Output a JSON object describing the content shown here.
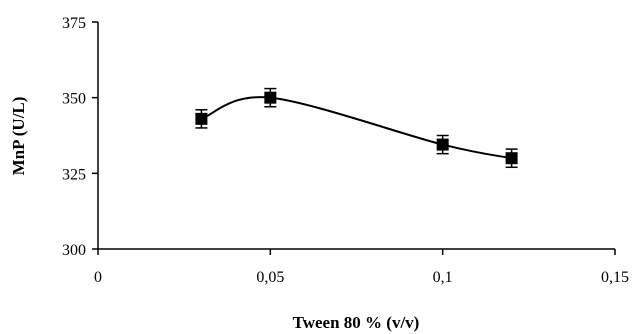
{
  "chart_data": {
    "type": "scatter",
    "title": "",
    "xlabel": "Tween 80 % (v/v)",
    "ylabel": "MnP (U/L)",
    "xlim": [
      0,
      0.15
    ],
    "ylim": [
      300,
      375
    ],
    "x_ticks": [
      0,
      0.05,
      0.1,
      0.15
    ],
    "x_tick_labels": [
      "0",
      "0,05",
      "0,1",
      "0,15"
    ],
    "y_ticks": [
      300,
      325,
      350,
      375
    ],
    "y_tick_labels": [
      "300",
      "325",
      "350",
      "375"
    ],
    "grid": false,
    "legend": "none",
    "marker": "square",
    "line": "smoothed",
    "series": [
      {
        "x": [
          0.03,
          0.05,
          0.1,
          0.12
        ],
        "values": [
          343,
          350,
          334.5,
          330
        ],
        "error": [
          3,
          3,
          3,
          3
        ]
      }
    ],
    "color": "#000000"
  }
}
